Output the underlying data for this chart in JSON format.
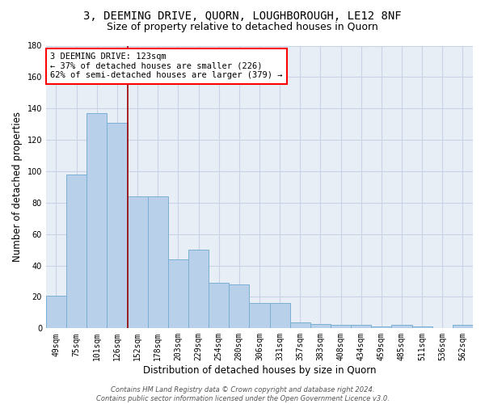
{
  "title1": "3, DEEMING DRIVE, QUORN, LOUGHBOROUGH, LE12 8NF",
  "title2": "Size of property relative to detached houses in Quorn",
  "xlabel": "Distribution of detached houses by size in Quorn",
  "ylabel": "Number of detached properties",
  "categories": [
    "49sqm",
    "75sqm",
    "101sqm",
    "126sqm",
    "152sqm",
    "178sqm",
    "203sqm",
    "229sqm",
    "254sqm",
    "280sqm",
    "306sqm",
    "331sqm",
    "357sqm",
    "383sqm",
    "408sqm",
    "434sqm",
    "459sqm",
    "485sqm",
    "511sqm",
    "536sqm",
    "562sqm"
  ],
  "values": [
    21,
    98,
    137,
    131,
    84,
    84,
    44,
    50,
    29,
    28,
    16,
    16,
    4,
    3,
    2,
    2,
    1,
    2,
    1,
    0,
    2
  ],
  "bar_color": "#b8d0ea",
  "bar_edge_color": "#7aafd4",
  "grid_color": "#c8d4e4",
  "bg_color": "#e8eef6",
  "annotation_line1": "3 DEEMING DRIVE: 123sqm",
  "annotation_line2": "← 37% of detached houses are smaller (226)",
  "annotation_line3": "62% of semi-detached houses are larger (379) →",
  "vline_x_index": 3.5,
  "vline_color": "#990000",
  "footnote": "Contains HM Land Registry data © Crown copyright and database right 2024.\nContains public sector information licensed under the Open Government Licence v3.0.",
  "ylim": [
    0,
    180
  ],
  "yticks": [
    0,
    20,
    40,
    60,
    80,
    100,
    120,
    140,
    160,
    180
  ],
  "title1_fontsize": 10,
  "title2_fontsize": 9,
  "xlabel_fontsize": 8.5,
  "ylabel_fontsize": 8.5,
  "tick_fontsize": 7,
  "annotation_fontsize": 7.5,
  "footnote_fontsize": 6
}
